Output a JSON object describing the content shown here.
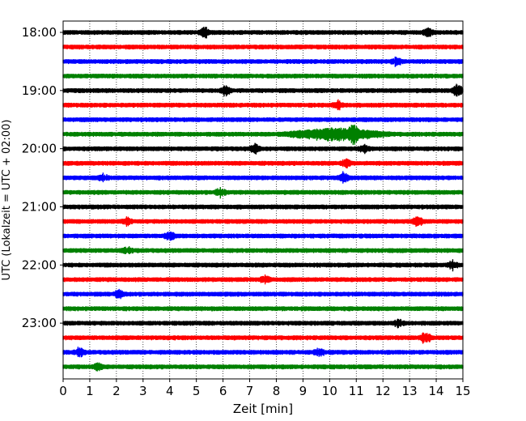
{
  "chart_data": {
    "type": "line",
    "title": "",
    "xlabel": "Zeit  [min]",
    "ylabel": "UTC (Lokalzeit = UTC + 02:00)",
    "xlim": [
      0,
      15
    ],
    "x_ticks": [
      "0",
      "1",
      "2",
      "3",
      "4",
      "5",
      "6",
      "7",
      "8",
      "9",
      "10",
      "11",
      "12",
      "13",
      "14",
      "15"
    ],
    "y_ticks": [
      "18:00",
      "19:00",
      "20:00",
      "21:00",
      "22:00",
      "23:00"
    ],
    "grid": "vertical dotted",
    "legend": "none",
    "trace_start": "18:00",
    "trace_interval_min": 15,
    "trace_count": 24,
    "colors": [
      "#000000",
      "#ff0000",
      "#0000ff",
      "#008000"
    ],
    "events": [
      {
        "trace": 0,
        "x": 5.3,
        "amp": 1.2
      },
      {
        "trace": 0,
        "x": 13.7,
        "amp": 0.9
      },
      {
        "trace": 2,
        "x": 12.5,
        "amp": 1.0
      },
      {
        "trace": 4,
        "x": 6.1,
        "amp": 1.0
      },
      {
        "trace": 4,
        "x": 14.8,
        "amp": 1.4
      },
      {
        "trace": 5,
        "x": 10.3,
        "amp": 1.1
      },
      {
        "trace": 7,
        "x": 10.9,
        "amp": 2.0
      },
      {
        "trace": 8,
        "x": 7.2,
        "amp": 1.2
      },
      {
        "trace": 8,
        "x": 11.3,
        "amp": 0.9
      },
      {
        "trace": 9,
        "x": 10.6,
        "amp": 0.9
      },
      {
        "trace": 10,
        "x": 10.5,
        "amp": 1.2
      },
      {
        "trace": 10,
        "x": 1.5,
        "amp": 1.0
      },
      {
        "trace": 11,
        "x": 5.9,
        "amp": 1.0
      },
      {
        "trace": 13,
        "x": 13.3,
        "amp": 1.1
      },
      {
        "trace": 13,
        "x": 2.4,
        "amp": 0.9
      },
      {
        "trace": 14,
        "x": 4.0,
        "amp": 0.9
      },
      {
        "trace": 15,
        "x": 2.4,
        "amp": 0.8
      },
      {
        "trace": 16,
        "x": 14.6,
        "amp": 1.0
      },
      {
        "trace": 17,
        "x": 7.6,
        "amp": 0.8
      },
      {
        "trace": 18,
        "x": 2.1,
        "amp": 0.9
      },
      {
        "trace": 20,
        "x": 12.6,
        "amp": 0.9
      },
      {
        "trace": 21,
        "x": 13.6,
        "amp": 1.4
      },
      {
        "trace": 22,
        "x": 0.6,
        "amp": 1.0
      },
      {
        "trace": 22,
        "x": 9.6,
        "amp": 0.9
      },
      {
        "trace": 23,
        "x": 1.3,
        "amp": 0.8
      }
    ],
    "long_events": [
      {
        "trace": 7,
        "x_start": 8.0,
        "x_end": 12.5,
        "amp": 1.6
      }
    ]
  }
}
